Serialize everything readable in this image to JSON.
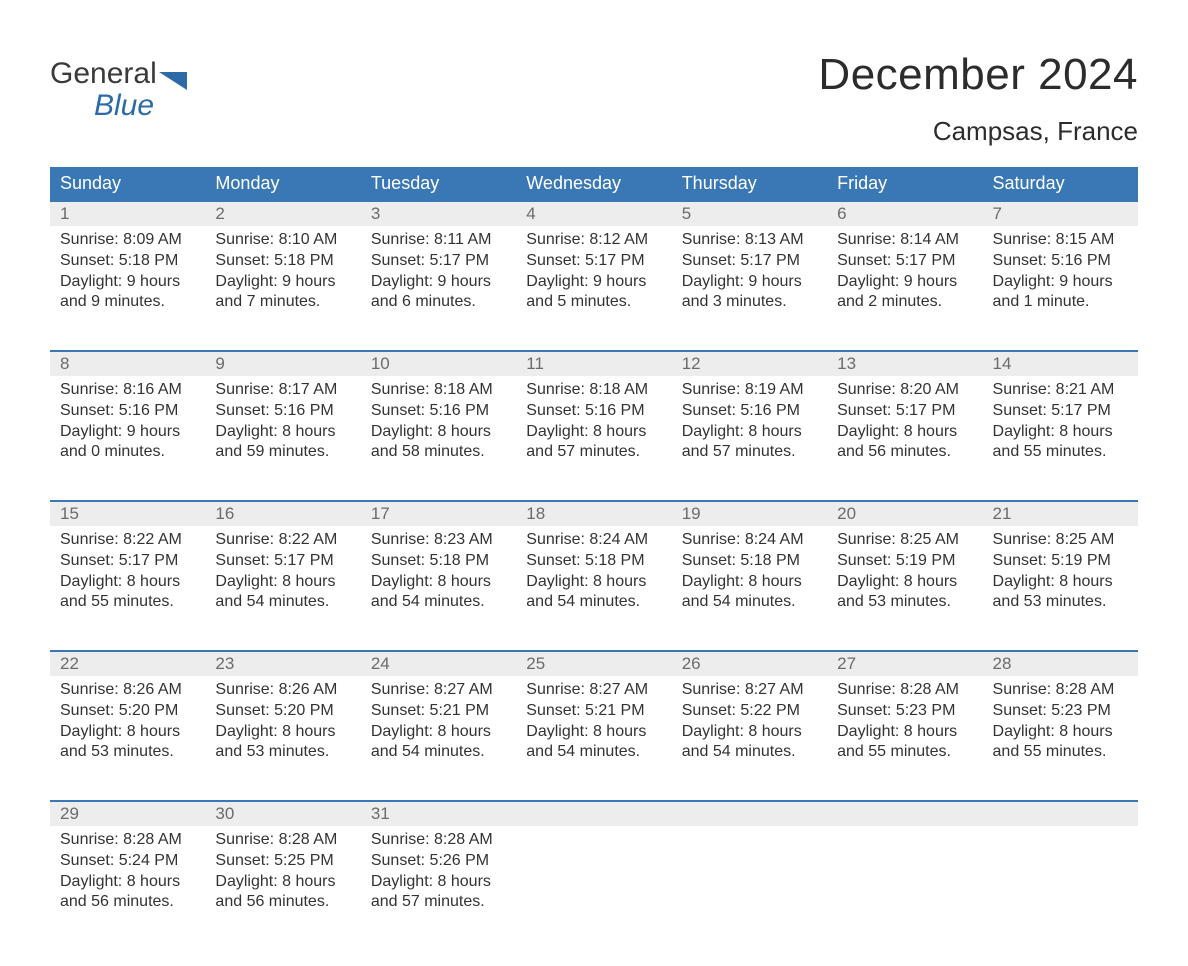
{
  "logo": {
    "general": "General",
    "blue": "Blue"
  },
  "title": "December 2024",
  "location": "Campsas, France",
  "colors": {
    "header_bg": "#3a78b5",
    "header_text": "#ffffff",
    "week_border": "#3a78b5",
    "date_strip_bg": "#ededed",
    "date_text": "#6b6b6b",
    "body_text": "#333333",
    "page_bg": "#ffffff",
    "logo_blue": "#2c6aa8"
  },
  "typography": {
    "title_fontsize": 44,
    "location_fontsize": 26,
    "dayheader_fontsize": 18,
    "date_fontsize": 17,
    "body_fontsize": 16,
    "font_family": "Arial"
  },
  "day_headers": [
    "Sunday",
    "Monday",
    "Tuesday",
    "Wednesday",
    "Thursday",
    "Friday",
    "Saturday"
  ],
  "weeks": [
    [
      {
        "date": "1",
        "sunrise": "Sunrise: 8:09 AM",
        "sunset": "Sunset: 5:18 PM",
        "day1": "Daylight: 9 hours",
        "day2": "and 9 minutes."
      },
      {
        "date": "2",
        "sunrise": "Sunrise: 8:10 AM",
        "sunset": "Sunset: 5:18 PM",
        "day1": "Daylight: 9 hours",
        "day2": "and 7 minutes."
      },
      {
        "date": "3",
        "sunrise": "Sunrise: 8:11 AM",
        "sunset": "Sunset: 5:17 PM",
        "day1": "Daylight: 9 hours",
        "day2": "and 6 minutes."
      },
      {
        "date": "4",
        "sunrise": "Sunrise: 8:12 AM",
        "sunset": "Sunset: 5:17 PM",
        "day1": "Daylight: 9 hours",
        "day2": "and 5 minutes."
      },
      {
        "date": "5",
        "sunrise": "Sunrise: 8:13 AM",
        "sunset": "Sunset: 5:17 PM",
        "day1": "Daylight: 9 hours",
        "day2": "and 3 minutes."
      },
      {
        "date": "6",
        "sunrise": "Sunrise: 8:14 AM",
        "sunset": "Sunset: 5:17 PM",
        "day1": "Daylight: 9 hours",
        "day2": "and 2 minutes."
      },
      {
        "date": "7",
        "sunrise": "Sunrise: 8:15 AM",
        "sunset": "Sunset: 5:16 PM",
        "day1": "Daylight: 9 hours",
        "day2": "and 1 minute."
      }
    ],
    [
      {
        "date": "8",
        "sunrise": "Sunrise: 8:16 AM",
        "sunset": "Sunset: 5:16 PM",
        "day1": "Daylight: 9 hours",
        "day2": "and 0 minutes."
      },
      {
        "date": "9",
        "sunrise": "Sunrise: 8:17 AM",
        "sunset": "Sunset: 5:16 PM",
        "day1": "Daylight: 8 hours",
        "day2": "and 59 minutes."
      },
      {
        "date": "10",
        "sunrise": "Sunrise: 8:18 AM",
        "sunset": "Sunset: 5:16 PM",
        "day1": "Daylight: 8 hours",
        "day2": "and 58 minutes."
      },
      {
        "date": "11",
        "sunrise": "Sunrise: 8:18 AM",
        "sunset": "Sunset: 5:16 PM",
        "day1": "Daylight: 8 hours",
        "day2": "and 57 minutes."
      },
      {
        "date": "12",
        "sunrise": "Sunrise: 8:19 AM",
        "sunset": "Sunset: 5:16 PM",
        "day1": "Daylight: 8 hours",
        "day2": "and 57 minutes."
      },
      {
        "date": "13",
        "sunrise": "Sunrise: 8:20 AM",
        "sunset": "Sunset: 5:17 PM",
        "day1": "Daylight: 8 hours",
        "day2": "and 56 minutes."
      },
      {
        "date": "14",
        "sunrise": "Sunrise: 8:21 AM",
        "sunset": "Sunset: 5:17 PM",
        "day1": "Daylight: 8 hours",
        "day2": "and 55 minutes."
      }
    ],
    [
      {
        "date": "15",
        "sunrise": "Sunrise: 8:22 AM",
        "sunset": "Sunset: 5:17 PM",
        "day1": "Daylight: 8 hours",
        "day2": "and 55 minutes."
      },
      {
        "date": "16",
        "sunrise": "Sunrise: 8:22 AM",
        "sunset": "Sunset: 5:17 PM",
        "day1": "Daylight: 8 hours",
        "day2": "and 54 minutes."
      },
      {
        "date": "17",
        "sunrise": "Sunrise: 8:23 AM",
        "sunset": "Sunset: 5:18 PM",
        "day1": "Daylight: 8 hours",
        "day2": "and 54 minutes."
      },
      {
        "date": "18",
        "sunrise": "Sunrise: 8:24 AM",
        "sunset": "Sunset: 5:18 PM",
        "day1": "Daylight: 8 hours",
        "day2": "and 54 minutes."
      },
      {
        "date": "19",
        "sunrise": "Sunrise: 8:24 AM",
        "sunset": "Sunset: 5:18 PM",
        "day1": "Daylight: 8 hours",
        "day2": "and 54 minutes."
      },
      {
        "date": "20",
        "sunrise": "Sunrise: 8:25 AM",
        "sunset": "Sunset: 5:19 PM",
        "day1": "Daylight: 8 hours",
        "day2": "and 53 minutes."
      },
      {
        "date": "21",
        "sunrise": "Sunrise: 8:25 AM",
        "sunset": "Sunset: 5:19 PM",
        "day1": "Daylight: 8 hours",
        "day2": "and 53 minutes."
      }
    ],
    [
      {
        "date": "22",
        "sunrise": "Sunrise: 8:26 AM",
        "sunset": "Sunset: 5:20 PM",
        "day1": "Daylight: 8 hours",
        "day2": "and 53 minutes."
      },
      {
        "date": "23",
        "sunrise": "Sunrise: 8:26 AM",
        "sunset": "Sunset: 5:20 PM",
        "day1": "Daylight: 8 hours",
        "day2": "and 53 minutes."
      },
      {
        "date": "24",
        "sunrise": "Sunrise: 8:27 AM",
        "sunset": "Sunset: 5:21 PM",
        "day1": "Daylight: 8 hours",
        "day2": "and 54 minutes."
      },
      {
        "date": "25",
        "sunrise": "Sunrise: 8:27 AM",
        "sunset": "Sunset: 5:21 PM",
        "day1": "Daylight: 8 hours",
        "day2": "and 54 minutes."
      },
      {
        "date": "26",
        "sunrise": "Sunrise: 8:27 AM",
        "sunset": "Sunset: 5:22 PM",
        "day1": "Daylight: 8 hours",
        "day2": "and 54 minutes."
      },
      {
        "date": "27",
        "sunrise": "Sunrise: 8:28 AM",
        "sunset": "Sunset: 5:23 PM",
        "day1": "Daylight: 8 hours",
        "day2": "and 55 minutes."
      },
      {
        "date": "28",
        "sunrise": "Sunrise: 8:28 AM",
        "sunset": "Sunset: 5:23 PM",
        "day1": "Daylight: 8 hours",
        "day2": "and 55 minutes."
      }
    ],
    [
      {
        "date": "29",
        "sunrise": "Sunrise: 8:28 AM",
        "sunset": "Sunset: 5:24 PM",
        "day1": "Daylight: 8 hours",
        "day2": "and 56 minutes."
      },
      {
        "date": "30",
        "sunrise": "Sunrise: 8:28 AM",
        "sunset": "Sunset: 5:25 PM",
        "day1": "Daylight: 8 hours",
        "day2": "and 56 minutes."
      },
      {
        "date": "31",
        "sunrise": "Sunrise: 8:28 AM",
        "sunset": "Sunset: 5:26 PM",
        "day1": "Daylight: 8 hours",
        "day2": "and 57 minutes."
      },
      {
        "date": "",
        "sunrise": "",
        "sunset": "",
        "day1": "",
        "day2": ""
      },
      {
        "date": "",
        "sunrise": "",
        "sunset": "",
        "day1": "",
        "day2": ""
      },
      {
        "date": "",
        "sunrise": "",
        "sunset": "",
        "day1": "",
        "day2": ""
      },
      {
        "date": "",
        "sunrise": "",
        "sunset": "",
        "day1": "",
        "day2": ""
      }
    ]
  ]
}
